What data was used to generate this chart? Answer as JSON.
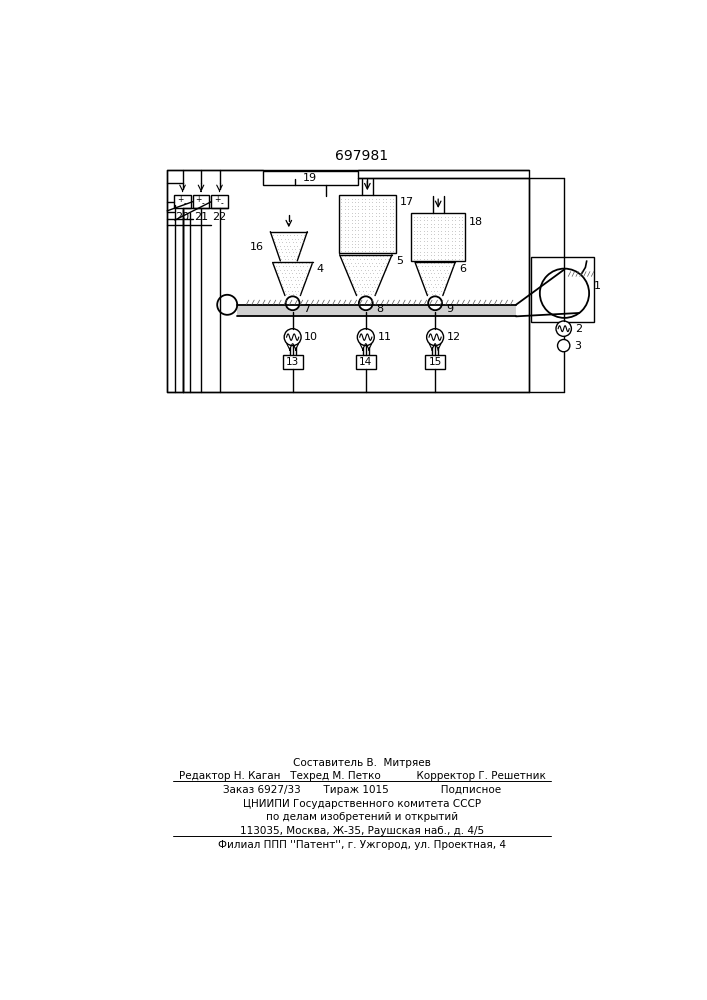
{
  "patent_number": "697981",
  "bg_color": "#ffffff",
  "fig_width": 7.07,
  "fig_height": 10.0,
  "footer_lines": [
    "Составитель В.  Митряев",
    "Редактор Н. Каган   Техред М. Петко           Корректор Г. Решетник",
    "Заказ 6927/33       Тираж 1015                Подписное",
    "ЦНИИПИ Государственного комитета СССР",
    "по делам изобретений и открытий",
    "113035, Москва, Ж-35, Раушская наб., д. 4/5",
    "Филиал ППП ''Патент'', г. Ужгород, ул. Проектная, 4"
  ]
}
